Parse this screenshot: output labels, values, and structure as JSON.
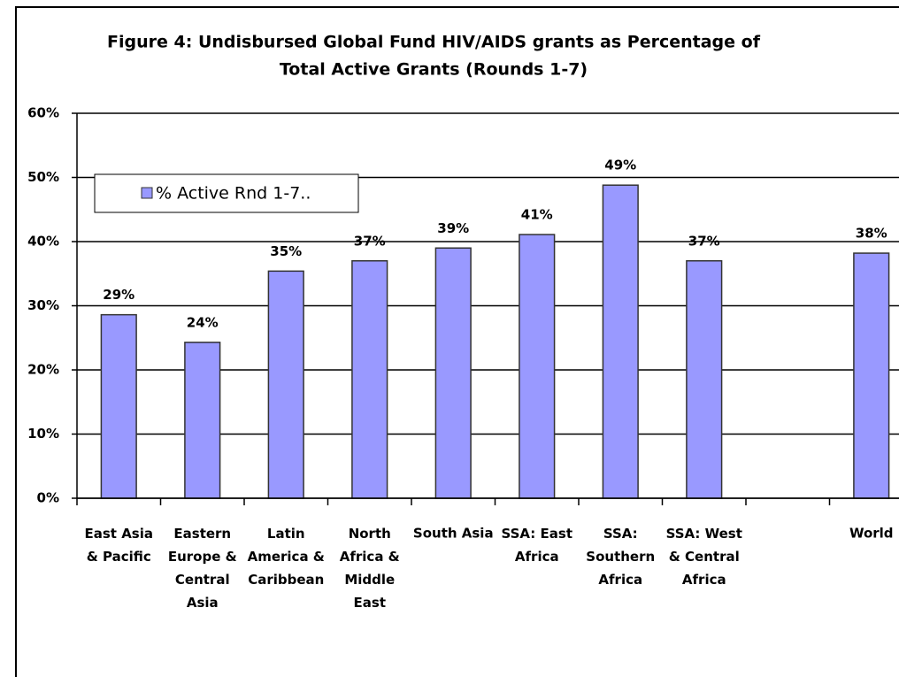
{
  "chart_data": {
    "type": "bar",
    "title": [
      "Figure 4:  Undisbursed Global Fund HIV/AIDS grants as Percentage of",
      "Total Active Grants (Rounds 1-7)"
    ],
    "categories": [
      "East Asia\n& Pacific",
      "Eastern\nEurope &\nCentral\nAsia",
      "Latin\nAmerica &\nCaribbean",
      "North\nAfrica &\nMiddle\nEast",
      "South Asia",
      "SSA: East\nAfrica",
      "SSA:\nSouthern\nAfrica",
      "SSA: West\n& Central\nAfrica",
      null,
      "World"
    ],
    "series": [
      {
        "name": "% Active Rnd 1-7..",
        "color": "#9999ff",
        "values": [
          28.6,
          24.3,
          35.4,
          37.0,
          39.0,
          41.1,
          48.8,
          37.0,
          null,
          38.2
        ],
        "value_labels": [
          "29%",
          "24%",
          "35%",
          "37%",
          "39%",
          "41%",
          "49%",
          "37%",
          null,
          "38%"
        ]
      }
    ],
    "ylim": [
      0,
      60
    ],
    "yticks": [
      {
        "value": 0,
        "label": "0%"
      },
      {
        "value": 10,
        "label": "10%"
      },
      {
        "value": 20,
        "label": "20%"
      },
      {
        "value": 30,
        "label": "30%"
      },
      {
        "value": 40,
        "label": "40%"
      },
      {
        "value": 50,
        "label": "50%"
      },
      {
        "value": 60,
        "label": "60%"
      }
    ],
    "grid": true,
    "legend": "upper left"
  }
}
